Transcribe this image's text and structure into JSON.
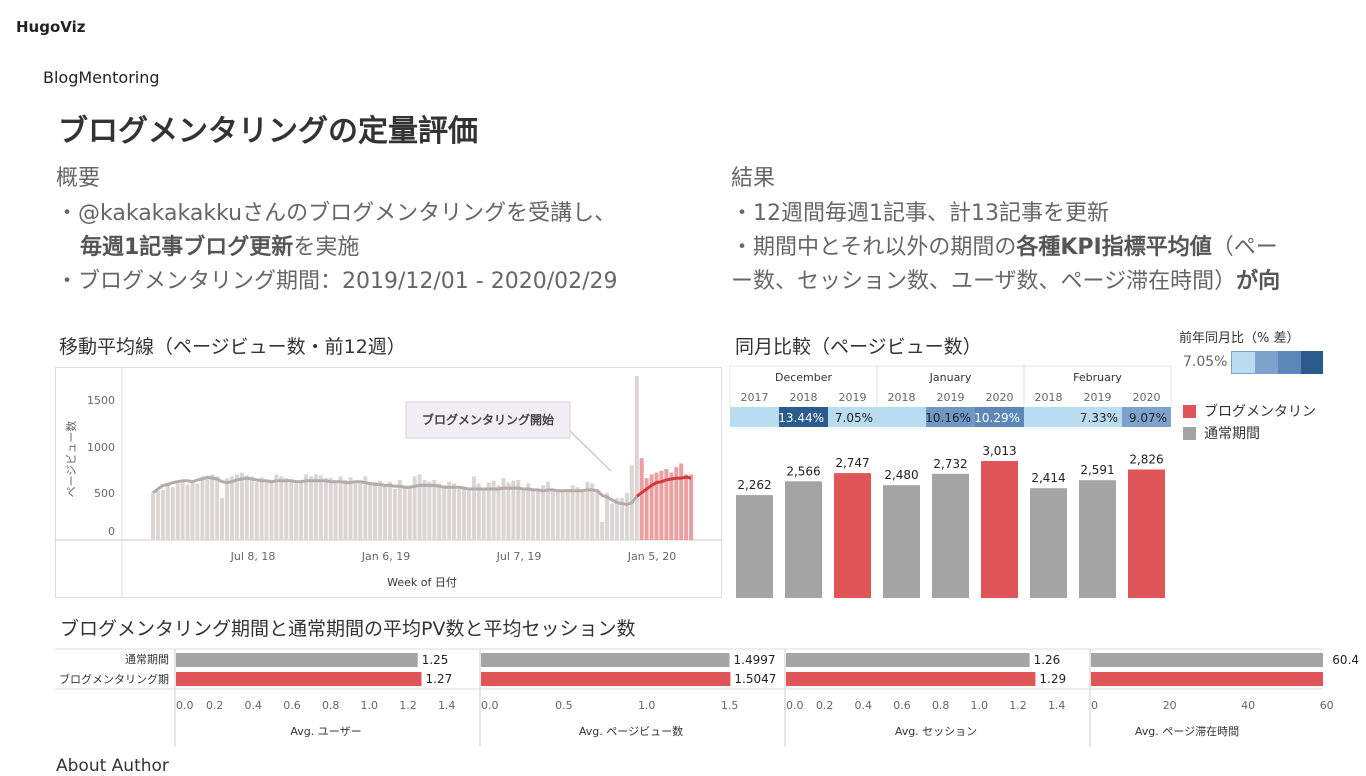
{
  "header": {
    "site_name": "HugoViz",
    "page_subtitle": "BlogMentoring"
  },
  "dashboard": {
    "title": "ブログメンタリングの定量評価",
    "overview": {
      "heading": "概要",
      "line1": "・@kakakakakkuさんのブログメンタリングを受講し、",
      "line2_bold": "毎週1記事ブログ更新",
      "line2_rest": "を実施",
      "line3": "・ブログメンタリング期間：2019/12/01 - 2020/02/29"
    },
    "results": {
      "heading": "結果",
      "line1": "・12週間毎週1記事、計13記事を更新",
      "line2_pre": "・期間中とそれ以外の期間の",
      "line2_bold": "各種KPI指標平均値",
      "line2_rest": "（ペー",
      "line3_pre": "ー数、セッション数、ユーザ数、ページ滞在時間）",
      "line3_bold": "が向"
    }
  },
  "moving_avg": {
    "title": "移動平均線（ページビュー数・前12週）",
    "ylabel": "ページビュー数",
    "xlabel": "Week of 日付",
    "annotation": "ブログメンタリング開始",
    "y_ticks": [
      "1500",
      "1000",
      "500",
      "0"
    ],
    "x_ticks": [
      "Jul 8, 18",
      "Jan 6, 19",
      "Jul 7, 19",
      "Jan 5, 20"
    ]
  },
  "yoy": {
    "title": "同月比較（ページビュー数）",
    "months": [
      {
        "name": "December",
        "years": [
          "2017",
          "2018",
          "2019"
        ]
      },
      {
        "name": "January",
        "years": [
          "2018",
          "2019",
          "2020"
        ]
      },
      {
        "name": "February",
        "years": [
          "2018",
          "2019",
          "2020"
        ]
      }
    ],
    "diffs": [
      "",
      "13.44%",
      "7.05%",
      "",
      "10.16%",
      "10.29%",
      "",
      "7.33%",
      "9.07%"
    ],
    "diff_colors": [
      "#b9dcf0",
      "#2b5a8c",
      "#b9dcf0",
      "#b9dcf0",
      "#6f98c4",
      "#5b87b9",
      "#b9dcf0",
      "#b9dcf0",
      "#7da3cc"
    ],
    "diff_text_colors": [
      "#222",
      "#fff",
      "#222",
      "#222",
      "#222",
      "#fff",
      "#222",
      "#222",
      "#222"
    ],
    "bar_labels": [
      "2,262",
      "2,566",
      "2,747",
      "2,480",
      "2,732",
      "3,013",
      "2,414",
      "2,591",
      "2,826"
    ],
    "legend_title": "前年同月比（% 差）",
    "legend_min": "7.05%",
    "series_legend": [
      "ブログメンタリン",
      "通常期間"
    ]
  },
  "comparison": {
    "title": "ブログメンタリング期間と通常期間の平均PV数と平均セッション数",
    "row_labels": [
      "通常期間",
      "ブログメンタリング期"
    ],
    "panels": [
      {
        "axis_title": "Avg. ユーザー",
        "values": [
          "1.25",
          "1.27"
        ],
        "ticks": [
          "0.0",
          "0.2",
          "0.4",
          "0.6",
          "0.8",
          "1.0",
          "1.2",
          "1.4"
        ]
      },
      {
        "axis_title": "Avg. ページビュー数",
        "values": [
          "1.4997",
          "1.5047"
        ],
        "ticks": [
          "0.0",
          "0.5",
          "1.0",
          "1.5"
        ]
      },
      {
        "axis_title": "Avg. セッション",
        "values": [
          "1.26",
          "1.29"
        ],
        "ticks": [
          "0.0",
          "0.2",
          "0.4",
          "0.6",
          "0.8",
          "1.0",
          "1.2",
          "1.4"
        ]
      },
      {
        "axis_title": "Avg. ページ滞在時間",
        "values": [
          "60.4",
          ""
        ],
        "ticks": [
          "0",
          "20",
          "40",
          "60"
        ]
      }
    ]
  },
  "footer": {
    "partial_text": "About Author"
  },
  "chart_data": [
    {
      "type": "bar",
      "title": "移動平均線（ページビュー数・前12週）",
      "ylabel": "ページビュー数",
      "xlabel": "Week of 日付",
      "ylim": [
        0,
        1900
      ],
      "x_ticks": [
        "Jul 8, 18",
        "Jan 6, 19",
        "Jul 7, 19",
        "Jan 5, 20"
      ],
      "weekly_pageviews": [
        520,
        540,
        550,
        600,
        580,
        620,
        660,
        610,
        640,
        620,
        700,
        680,
        720,
        700,
        460,
        680,
        700,
        720,
        740,
        710,
        700,
        640,
        690,
        650,
        660,
        720,
        700,
        680,
        660,
        620,
        660,
        720,
        700,
        720,
        710,
        680,
        680,
        640,
        700,
        660,
        690,
        640,
        650,
        700,
        620,
        640,
        650,
        600,
        640,
        560,
        660,
        600,
        580,
        700,
        720,
        660,
        640,
        660,
        620,
        600,
        640,
        620,
        560,
        560,
        560,
        700,
        620,
        560,
        630,
        650,
        600,
        680,
        630,
        650,
        660,
        560,
        620,
        560,
        560,
        600,
        640,
        560,
        560,
        540,
        560,
        600,
        580,
        560,
        640,
        620,
        560,
        200,
        520,
        400,
        460,
        460,
        520,
        820,
        1800,
        900,
        680,
        720,
        740,
        760,
        780,
        740,
        800,
        840,
        720,
        720
      ],
      "moving_average": [
        520,
        560,
        600,
        610,
        630,
        640,
        650,
        650,
        640,
        660,
        670,
        690,
        680,
        670,
        640,
        630,
        640,
        660,
        670,
        680,
        670,
        660,
        650,
        650,
        640,
        650,
        650,
        650,
        650,
        640,
        640,
        650,
        650,
        650,
        650,
        650,
        640,
        640,
        640,
        630,
        630,
        640,
        640,
        630,
        620,
        610,
        610,
        600,
        600,
        590,
        590,
        580,
        580,
        590,
        600,
        600,
        600,
        600,
        590,
        580,
        580,
        580,
        580,
        570,
        560,
        560,
        560,
        560,
        560,
        560,
        560,
        570,
        570,
        570,
        570,
        560,
        560,
        550,
        550,
        540,
        550,
        550,
        540,
        540,
        540,
        540,
        540,
        540,
        550,
        550,
        540,
        490,
        470,
        440,
        410,
        400,
        390,
        410,
        480,
        520,
        560,
        600,
        630,
        640,
        660,
        670,
        680,
        680,
        690,
        680
      ],
      "mentoring_start_index": 99,
      "highlight_from_index": 99
    },
    {
      "type": "bar",
      "title": "同月比較（ページビュー数）",
      "categories": [
        "December 2017",
        "December 2018",
        "December 2019",
        "January 2018",
        "January 2019",
        "January 2020",
        "February 2018",
        "February 2019",
        "February 2020"
      ],
      "values": [
        2262,
        2566,
        2747,
        2480,
        2732,
        3013,
        2414,
        2591,
        2826
      ],
      "pct_diff": [
        null,
        13.44,
        7.05,
        null,
        10.16,
        10.29,
        null,
        7.33,
        9.07
      ],
      "highlight": [
        false,
        false,
        true,
        false,
        false,
        true,
        false,
        false,
        true
      ],
      "colors": {
        "highlight": "#e05558",
        "normal": "#a4a4a4"
      }
    },
    {
      "type": "bar",
      "title": "ブログメンタリング期間と通常期間の平均PV数と平均セッション数",
      "categories": [
        "通常期間",
        "ブログメンタリング期"
      ],
      "series": [
        {
          "name": "Avg. ユーザー",
          "values": [
            1.25,
            1.27
          ]
        },
        {
          "name": "Avg. ページビュー数",
          "values": [
            1.4997,
            1.5047
          ]
        },
        {
          "name": "Avg. セッション",
          "values": [
            1.26,
            1.29
          ]
        },
        {
          "name": "Avg. ページ滞在時間",
          "values": [
            60.4,
            null
          ]
        }
      ],
      "ranges": [
        [
          0,
          1.5
        ],
        [
          0,
          1.75
        ],
        [
          0,
          1.5
        ],
        [
          0,
          70
        ]
      ],
      "colors": {
        "normal": "#a4a4a4",
        "mentoring": "#e05558"
      }
    }
  ]
}
